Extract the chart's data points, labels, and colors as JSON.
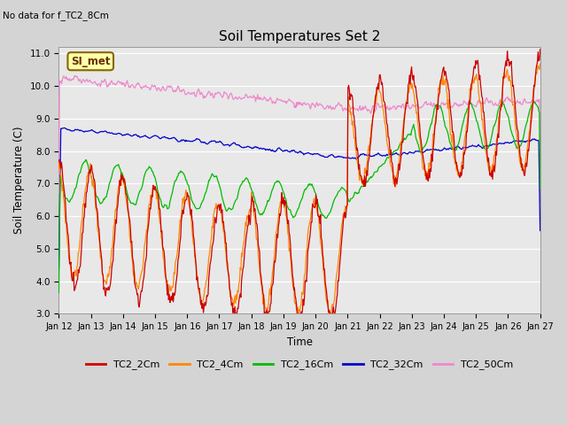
{
  "title": "Soil Temperatures Set 2",
  "subtitle": "No data for f_TC2_8Cm",
  "xlabel": "Time",
  "ylabel": "Soil Temperature (C)",
  "ylim": [
    3.0,
    11.2
  ],
  "yticks": [
    3.0,
    4.0,
    5.0,
    6.0,
    7.0,
    8.0,
    9.0,
    10.0,
    11.0
  ],
  "x_tick_labels": [
    "Jan 12",
    "Jan 13",
    "Jan 14",
    "Jan 15",
    "Jan 16",
    "Jan 17",
    "Jan 18",
    "Jan 19",
    "Jan 20",
    "Jan 21",
    "Jan 22",
    "Jan 23",
    "Jan 24",
    "Jan 25",
    "Jan 26",
    "Jan 27"
  ],
  "plot_bg_color": "#e8e8e8",
  "fig_bg_color": "#d4d4d4",
  "colors": {
    "TC2_2Cm": "#cc0000",
    "TC2_4Cm": "#ff8800",
    "TC2_16Cm": "#00bb00",
    "TC2_32Cm": "#0000cc",
    "TC2_50Cm": "#ee88cc"
  },
  "legend_label": "SI_met",
  "legend_box_color": "#ffffaa",
  "legend_box_border": "#886600"
}
